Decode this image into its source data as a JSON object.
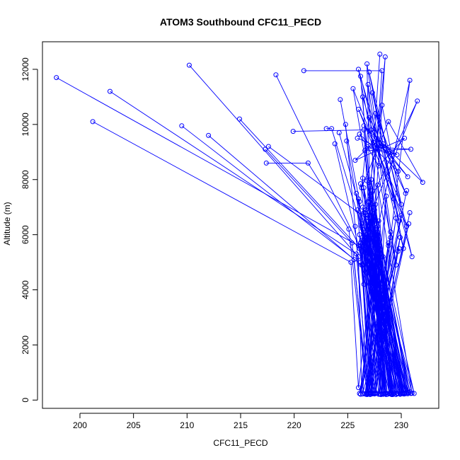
{
  "chart_data": {
    "type": "line",
    "title": "ATOM3 Southbound CFC11_PECD",
    "xlabel": "CFC11_PECD",
    "ylabel": "Altitude (m)",
    "xlim": [
      196.5,
      233.5
    ],
    "ylim": [
      -300,
      13000
    ],
    "xticks": [
      "200",
      "205",
      "210",
      "215",
      "220",
      "225",
      "230"
    ],
    "yticks": [
      "0",
      "2000",
      "4000",
      "6000",
      "8000",
      "10000",
      "12000"
    ],
    "grid": false,
    "legend": "none",
    "color": "#0000ff",
    "series": [
      {
        "x": [
          228.0,
          226.5,
          228.5,
          227.2,
          226.8,
          229.5,
          226.0,
          231.0,
          227.0,
          230.2,
          226.2,
          227.5,
          230.8,
          229.0,
          226.9,
          227.8,
          225.5,
          230.5,
          227.3,
          229.8,
          226.4,
          227.1,
          231.5,
          226.7,
          228.2,
          230.0,
          226.0,
          229.3,
          227.6,
          230.4,
          227.0,
          226.3,
          228.8,
          232.0,
          226.5,
          230.6,
          227.2,
          229.7,
          226.1,
          227.9,
          230.3,
          225.7,
          227.4,
          229.1,
          226.8,
          230.9,
          226.6,
          228.3,
          229.6,
          225.9
        ],
        "y": [
          12550,
          4200,
          12450,
          4600,
          12200,
          4900,
          12000,
          5200,
          11900,
          5500,
          11750,
          5700,
          11600,
          5900,
          11450,
          6100,
          11300,
          6300,
          11150,
          6500,
          11000,
          6700,
          10850,
          6900,
          10700,
          7100,
          10550,
          7300,
          10400,
          7500,
          10250,
          7700,
          10100,
          7900,
          9950,
          8100,
          9800,
          8300,
          9650,
          8500,
          9500,
          8700,
          9350,
          8900,
          9200,
          9100,
          9050,
          9300,
          8900,
          9500
        ]
      },
      {
        "x": [
          197.8,
          226.0,
          230.2,
          227.0,
          229.5,
          226.6,
          228.9,
          227.4,
          230.8,
          226.9,
          229.2,
          227.1,
          230.0,
          225.8,
          228.4,
          227.3,
          230.6,
          226.5,
          229.0,
          227.8,
          231.0,
          226.2,
          228.6,
          227.0,
          230.4,
          226.8,
          229.7,
          227.2,
          228.1,
          226.4
        ],
        "y": [
          11700,
          5600,
          250,
          6300,
          200,
          6800,
          250,
          7000,
          300,
          7200,
          200,
          7300,
          250,
          7500,
          220,
          7600,
          280,
          7700,
          230,
          7800,
          250,
          7850,
          200,
          7900,
          260,
          7950,
          240,
          8000,
          210,
          8050
        ]
      },
      {
        "x": [
          202.8,
          225.8,
          227.0,
          226.2,
          229.8,
          226.7,
          228.0,
          227.4,
          229.0,
          226.3,
          230.5,
          227.1,
          228.6,
          226.9,
          229.9,
          227.5,
          230.2,
          226.4,
          228.3,
          227.2
        ],
        "y": [
          11200,
          5300,
          250,
          5700,
          300,
          6000,
          220,
          6200,
          280,
          6400,
          240,
          6600,
          250,
          6700,
          230,
          6900,
          260,
          7000,
          210,
          7100
        ]
      },
      {
        "x": [
          201.2,
          225.3,
          226.0,
          227.5,
          228.5,
          227.0,
          229.6,
          226.1,
          230.7,
          227.8,
          228.1,
          226.8,
          229.3,
          227.2,
          230.3,
          226.5
        ],
        "y": [
          10100,
          5000,
          450,
          5400,
          250,
          5800,
          230,
          6000,
          270,
          6300,
          200,
          6500,
          250,
          6600,
          220,
          6800
        ]
      },
      {
        "x": [
          210.2,
          226.0,
          226.3,
          227.7,
          229.1,
          226.6,
          230.1,
          227.3,
          228.7,
          226.9,
          231.2,
          227.6
        ],
        "y": [
          12150,
          5200,
          400,
          5600,
          230,
          5900,
          260,
          6100,
          210,
          6300,
          240,
          6500
        ]
      },
      {
        "x": [
          209.5,
          226.3,
          227.2,
          226.7,
          229.2,
          227.9,
          228.2,
          226.2,
          230.4,
          227.4
        ],
        "y": [
          9950,
          4900,
          250,
          5200,
          220,
          5500,
          240,
          5700,
          260,
          5900
        ]
      },
      {
        "x": [
          212.0,
          225.6,
          226.8,
          228.0,
          229.6,
          227.0,
          230.6,
          226.5
        ],
        "y": [
          9600,
          5100,
          200,
          5300,
          250,
          5500,
          230,
          5700
        ]
      },
      {
        "x": [
          214.9,
          226.1,
          227.4,
          226.3,
          229.9,
          227.7,
          228.4,
          226.9
        ],
        "y": [
          10200,
          5500,
          240,
          5800,
          210,
          6000,
          230,
          6200
        ]
      },
      {
        "x": [
          217.3,
          225.4,
          226.9,
          227.8,
          229.4,
          226.4,
          230.9
        ],
        "y": [
          9100,
          5700,
          220,
          6000,
          250,
          6200,
          240
        ]
      },
      {
        "x": [
          217.6,
          226.7,
          227.3,
          225.9,
          229.1,
          227.6,
          228.5,
          226.0
        ],
        "y": [
          9200,
          6600,
          230,
          6900,
          200,
          7100,
          250,
          7300
        ]
      },
      {
        "x": [
          217.4,
          221.3,
          225.1,
          226.8,
          227.9,
          226.2,
          230.0,
          227.1
        ],
        "y": [
          8600,
          8600,
          6200,
          250,
          6500,
          210,
          6700,
          230
        ]
      },
      {
        "x": [
          218.3,
          226.3,
          227.1,
          228.8,
          226.6,
          229.9,
          227.5
        ],
        "y": [
          11800,
          5400,
          260,
          5700,
          230,
          5900,
          220
        ]
      },
      {
        "x": [
          220.9,
          228.2,
          226.8,
          229.3,
          227.0,
          230.3
        ],
        "y": [
          11950,
          11950,
          4600,
          250,
          4900,
          230
        ]
      },
      {
        "x": [
          219.9,
          226.5,
          227.3,
          228.9,
          226.2,
          230.1,
          227.8
        ],
        "y": [
          9750,
          9800,
          4700,
          230,
          5000,
          250,
          5200
        ]
      },
      {
        "x": [
          223.0,
          223.5,
          227.2,
          226.4,
          229.7,
          227.6,
          228.8
        ],
        "y": [
          9850,
          9850,
          5100,
          220,
          5400,
          240,
          5600
        ]
      },
      {
        "x": [
          224.3,
          226.1,
          227.5,
          228.6,
          226.7,
          230.5
        ],
        "y": [
          10900,
          7200,
          250,
          7400,
          210,
          7600
        ]
      },
      {
        "x": [
          224.8,
          225.7,
          226.9,
          229.5,
          227.2,
          230.8
        ],
        "y": [
          10000,
          6300,
          230,
          6600,
          250,
          6800
        ]
      },
      {
        "x": [
          223.8,
          226.4,
          227.1,
          228.3,
          226.1,
          229.8
        ],
        "y": [
          9300,
          4900,
          200,
          5200,
          240,
          5500
        ]
      },
      {
        "x": [
          224.2,
          226.8,
          227.7,
          226.3,
          230.2,
          227.4
        ],
        "y": [
          9700,
          6000,
          250,
          6300,
          220,
          6500
        ]
      },
      {
        "x": [
          224.9,
          226.5,
          227.9,
          229.0,
          226.9,
          230.7,
          227.3
        ],
        "y": [
          9400,
          5800,
          210,
          6100,
          240,
          6400,
          230
        ]
      }
    ]
  }
}
